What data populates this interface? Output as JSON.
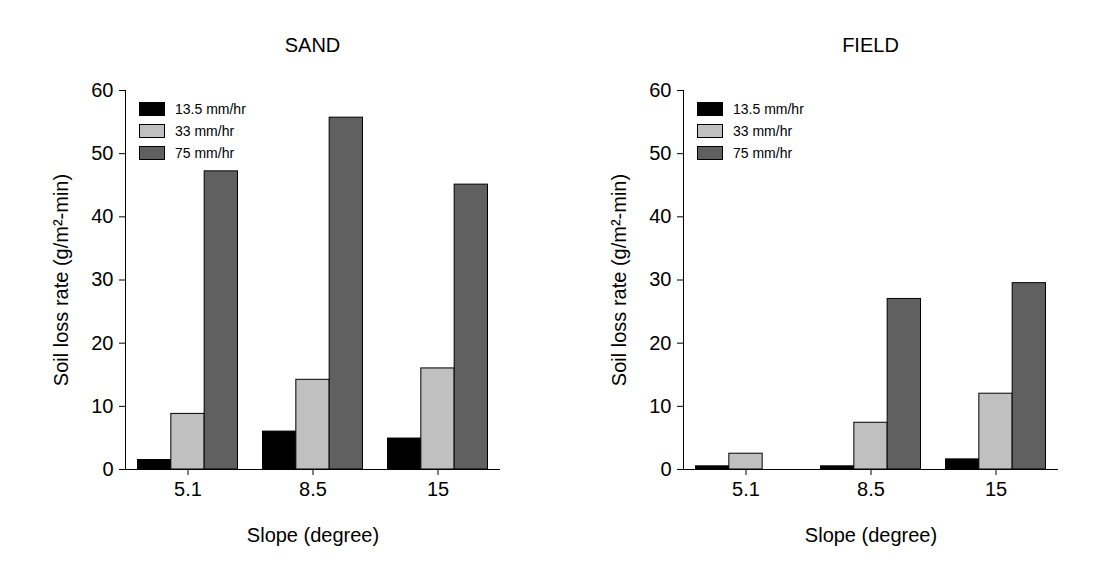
{
  "chart_data": [
    {
      "type": "bar",
      "title": "SAND",
      "xlabel": "Slope (degree)",
      "ylabel": "Soil loss rate (g/m²-min)",
      "categories": [
        "5.1",
        "8.5",
        "15"
      ],
      "series": [
        {
          "name": "13.5 mm/hr",
          "color": "#000000",
          "values": [
            1.5,
            6.0,
            4.9
          ]
        },
        {
          "name": "33 mm/hr",
          "color": "#c0c0c0",
          "values": [
            8.8,
            14.2,
            16.0
          ]
        },
        {
          "name": "75 mm/hr",
          "color": "#606060",
          "values": [
            47.2,
            55.7,
            45.1
          ]
        }
      ],
      "ylim": [
        0,
        60
      ],
      "yticks": [
        0,
        10,
        20,
        30,
        40,
        50,
        60
      ],
      "grid": false,
      "legend": "top-left"
    },
    {
      "type": "bar",
      "title": "FIELD",
      "xlabel": "Slope (degree)",
      "ylabel": "Soil loss rate (g/m²-min)",
      "categories": [
        "5.1",
        "8.5",
        "15"
      ],
      "series": [
        {
          "name": "13.5 mm/hr",
          "color": "#000000",
          "values": [
            0.5,
            0.5,
            1.6
          ]
        },
        {
          "name": "33 mm/hr",
          "color": "#c0c0c0",
          "values": [
            2.5,
            7.4,
            12.0
          ]
        },
        {
          "name": "75 mm/hr",
          "color": "#606060",
          "values": [
            null,
            27.0,
            29.5
          ]
        }
      ],
      "ylim": [
        0,
        60
      ],
      "yticks": [
        0,
        10,
        20,
        30,
        40,
        50,
        60
      ],
      "grid": false,
      "legend": "top-left"
    }
  ]
}
